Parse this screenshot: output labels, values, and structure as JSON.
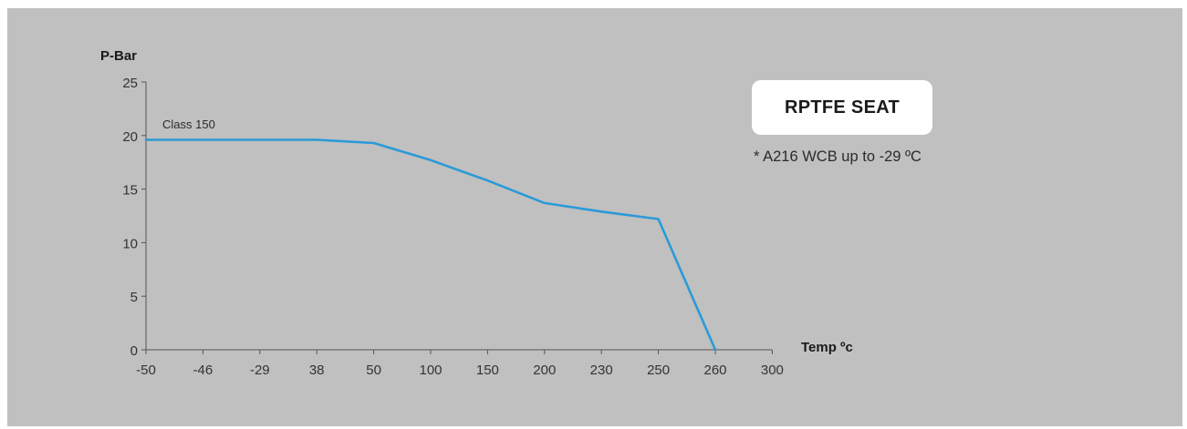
{
  "chart_data": {
    "type": "line",
    "ylabel": "P-Bar",
    "xlabel": "Temp ºc",
    "x_ticks": [
      "-50",
      "-46",
      "-29",
      "38",
      "50",
      "100",
      "150",
      "200",
      "230",
      "250",
      "260",
      "300"
    ],
    "y_ticks": [
      "0",
      "5",
      "10",
      "15",
      "20",
      "25"
    ],
    "ylim": [
      0,
      25
    ],
    "x_scale": "categorical (equally spaced ticks)",
    "grid": false,
    "series": [
      {
        "name": "Class 150",
        "color": "#2a9ad8",
        "x": [
          -50,
          -29,
          38,
          50,
          100,
          150,
          200,
          230,
          250,
          260
        ],
        "y": [
          19.6,
          19.6,
          19.6,
          19.3,
          17.7,
          15.8,
          13.7,
          12.9,
          12.2,
          0
        ]
      }
    ],
    "annotations": {
      "series_label": "Class 150",
      "badge": "RPTFE SEAT",
      "note": "* A216 WCB up to -29 ºC"
    }
  },
  "colors": {
    "background": "#c0c0c0",
    "line": "#2a9ad8",
    "axis": "#555555",
    "badge_bg": "#ffffff"
  }
}
